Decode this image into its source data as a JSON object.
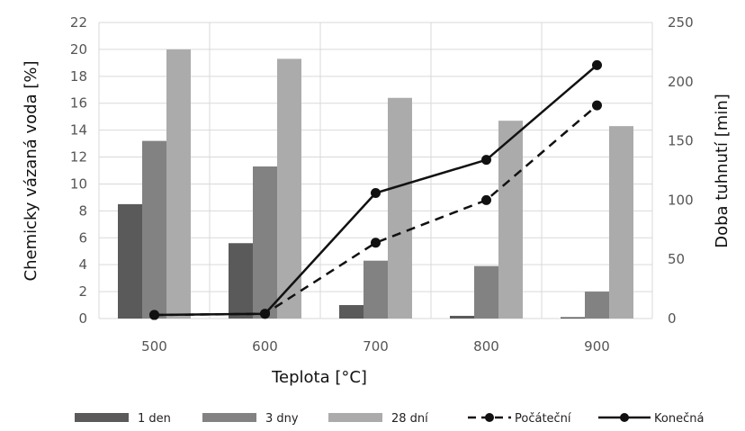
{
  "chart_data": {
    "type": "bar",
    "categories": [
      "500",
      "600",
      "700",
      "800",
      "900"
    ],
    "xlabel": "Teplota [°C]",
    "ylabel": "Chemicky vázaná voda [%]",
    "y2label": "Doba tuhnutí [min]",
    "ylim": [
      0,
      22
    ],
    "y2lim": [
      0,
      250
    ],
    "yticks": [
      "0",
      "2",
      "4",
      "6",
      "8",
      "10",
      "12",
      "14",
      "16",
      "18",
      "20",
      "22"
    ],
    "y2ticks": [
      "0",
      "50",
      "100",
      "150",
      "200",
      "250"
    ],
    "grid": true,
    "legend_position": "bottom",
    "series": [
      {
        "name": "1 den",
        "type": "bar",
        "axis": "left",
        "color": "#5a5a5a",
        "values": [
          8.5,
          5.6,
          1.0,
          0.2,
          0.1
        ]
      },
      {
        "name": "3 dny",
        "type": "bar",
        "axis": "left",
        "color": "#828282",
        "values": [
          13.2,
          11.3,
          4.3,
          3.9,
          2.0
        ]
      },
      {
        "name": "28 dní",
        "type": "bar",
        "axis": "left",
        "color": "#ababab",
        "values": [
          20.0,
          19.3,
          16.4,
          14.7,
          14.3
        ]
      },
      {
        "name": "Počáteční",
        "type": "line",
        "axis": "right",
        "style": "dashed",
        "color": "#111111",
        "values": [
          3,
          4,
          64,
          100,
          180
        ]
      },
      {
        "name": "Konečná",
        "type": "line",
        "axis": "right",
        "style": "solid",
        "color": "#111111",
        "values": [
          3,
          4,
          106,
          134,
          214
        ]
      }
    ]
  }
}
